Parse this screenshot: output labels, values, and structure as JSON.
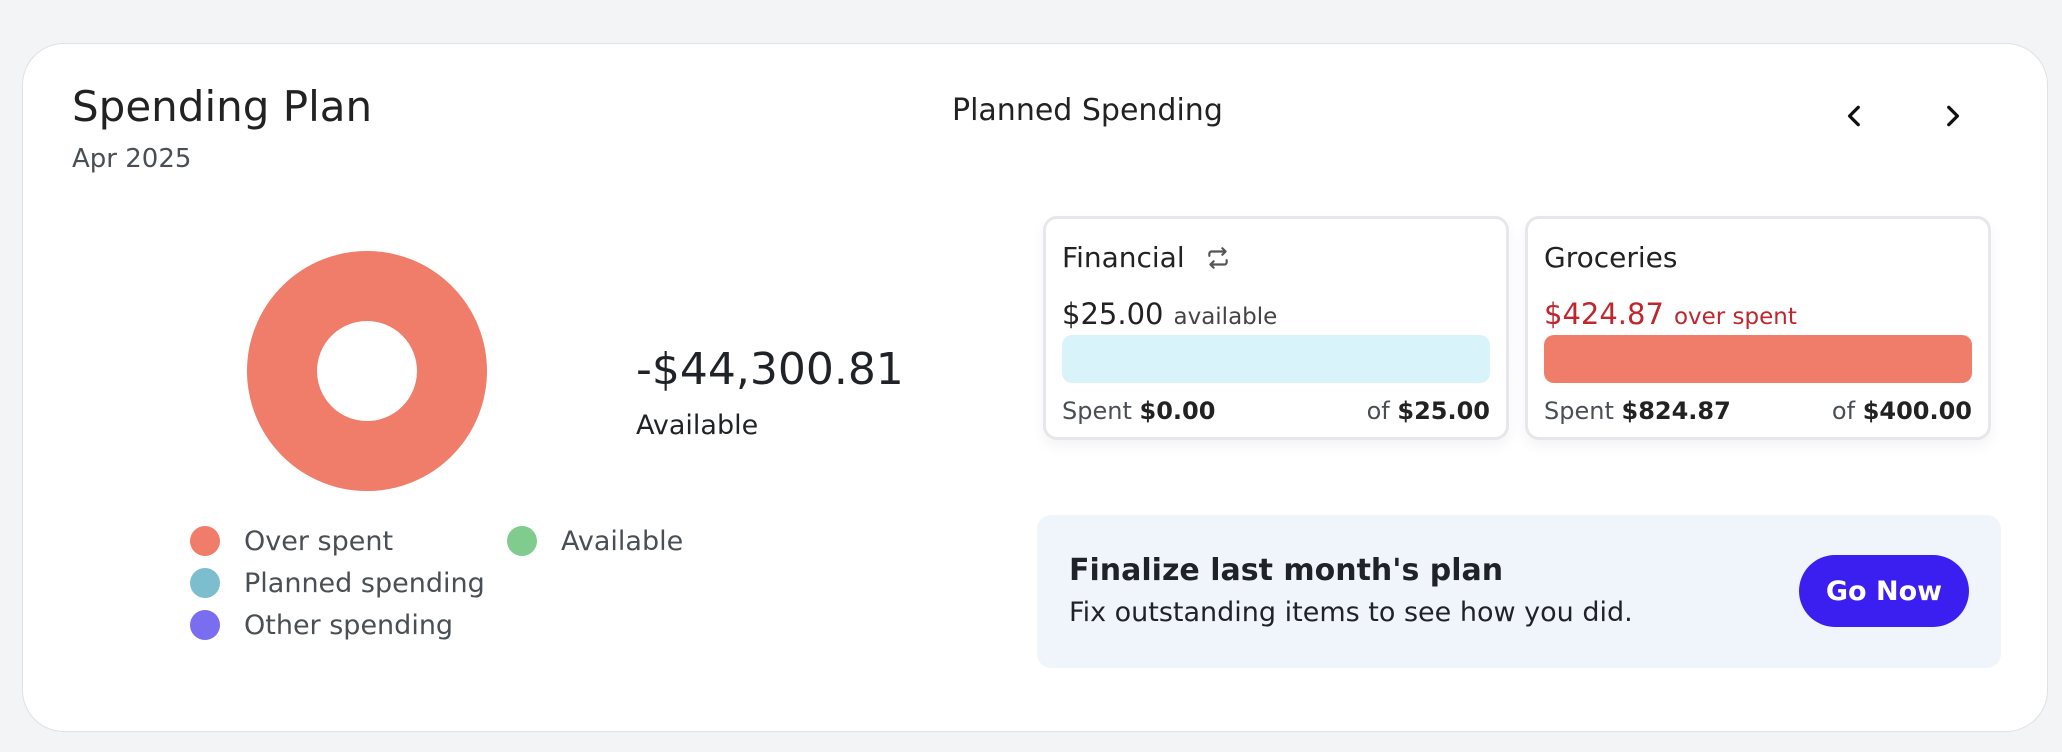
{
  "header": {
    "title": "Spending Plan",
    "period": "Apr 2025",
    "section_title": "Planned Spending"
  },
  "summary": {
    "total": "-$44,300.81",
    "total_label": "Available"
  },
  "legend": [
    {
      "label": "Over spent",
      "color": "#ef7d69"
    },
    {
      "label": "Available",
      "color": "#7fcc8e"
    },
    {
      "label": "Planned spending",
      "color": "#7cbecd"
    },
    {
      "label": "Other spending",
      "color": "#7b6df0"
    }
  ],
  "chart_data": {
    "type": "pie",
    "series": [
      {
        "name": "Over spent",
        "value": 100,
        "color": "#ef7d69"
      }
    ]
  },
  "categories": [
    {
      "name": "Financial",
      "amount": "$25.00",
      "amount_label": "available",
      "amount_color": "#222222",
      "bar_color": "#d8f4fa",
      "spent_prefix": "Spent",
      "spent": "$0.00",
      "of_prefix": "of",
      "budget": "$25.00",
      "icon": "repeat-icon"
    },
    {
      "name": "Groceries",
      "amount": "$424.87",
      "amount_label": "over spent",
      "amount_color": "#c0262d",
      "bar_color": "#ef7d69",
      "spent_prefix": "Spent",
      "spent": "$824.87",
      "of_prefix": "of",
      "budget": "$400.00"
    }
  ],
  "finalize": {
    "title": "Finalize last month's plan",
    "subtitle": "Fix outstanding items to see how you did.",
    "button": "Go Now"
  },
  "colors": {
    "accent": "#3b1ff0",
    "over_spent": "#ef7d69"
  }
}
